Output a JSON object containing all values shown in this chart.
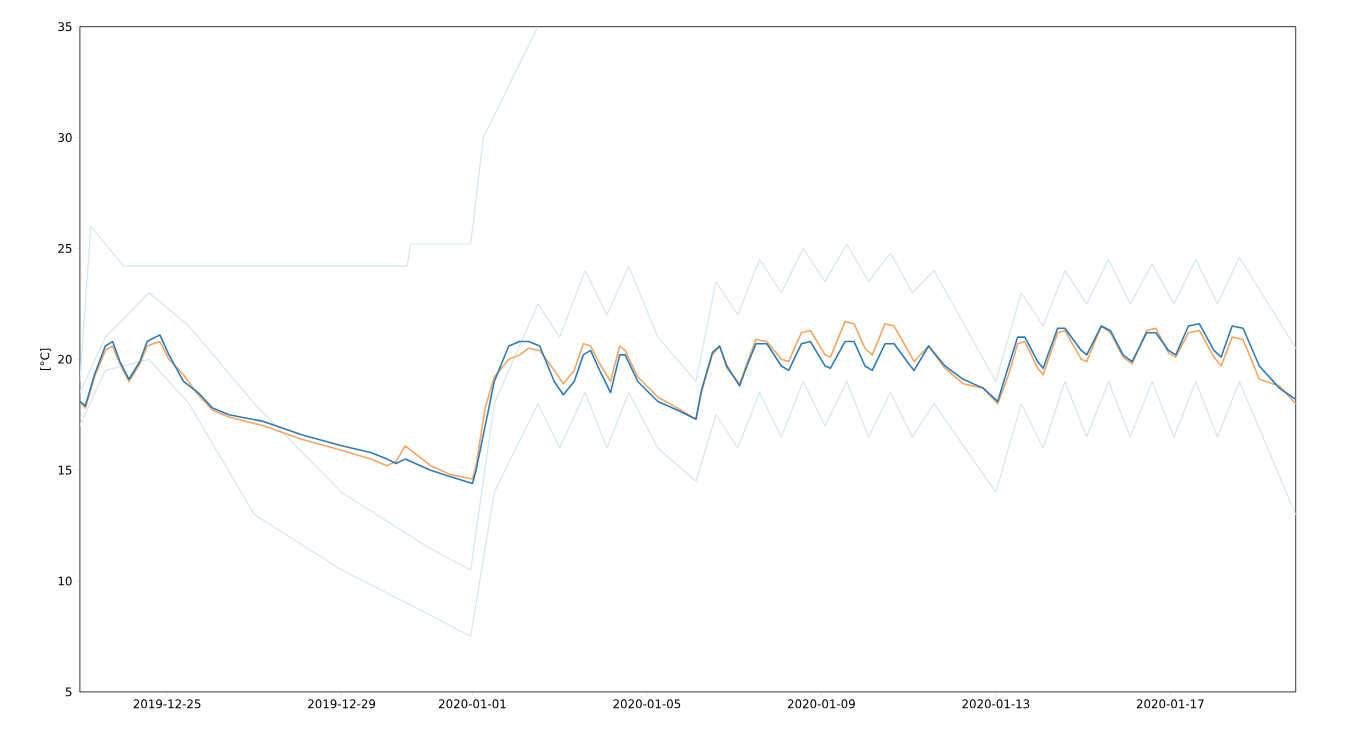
{
  "chart_data": {
    "type": "line",
    "ylabel": "[°C]",
    "xlim": [
      "2019-12-23T00:00",
      "2020-01-19T21:00"
    ],
    "ylim": [
      5,
      35
    ],
    "xticks": [
      "2019-12-25",
      "2019-12-29",
      "2020-01-01",
      "2020-01-05",
      "2020-01-09",
      "2020-01-13",
      "2020-01-17"
    ],
    "yticks": [
      5,
      10,
      15,
      20,
      25,
      30,
      35
    ],
    "marker": "none",
    "line_style": "solid",
    "x": [
      "2019-12-23T00:00",
      "2019-12-23T03:00",
      "2019-12-23T08:00",
      "2019-12-23T14:00",
      "2019-12-23T18:00",
      "2019-12-23T22:00",
      "2019-12-24T03:00",
      "2019-12-24T09:00",
      "2019-12-24T13:00",
      "2019-12-24T20:00",
      "2019-12-25T01:00",
      "2019-12-25T09:00",
      "2019-12-25T17:00",
      "2019-12-26T01:00",
      "2019-12-26T10:00",
      "2019-12-27T05:00",
      "2019-12-28T02:00",
      "2019-12-29T00:00",
      "2019-12-29T16:00",
      "2019-12-30T01:00",
      "2019-12-30T06:00",
      "2019-12-30T11:00",
      "2019-12-31T01:00",
      "2019-12-31T12:00",
      "2020-01-01T00:00",
      "2020-01-01T02:00",
      "2020-01-01T07:00",
      "2020-01-01T12:00",
      "2020-01-01T20:00",
      "2020-01-02T02:00",
      "2020-01-02T07:00",
      "2020-01-02T13:00",
      "2020-01-02T21:00",
      "2020-01-03T02:00",
      "2020-01-03T08:00",
      "2020-01-03T13:00",
      "2020-01-03T17:00",
      "2020-01-03T22:00",
      "2020-01-04T04:00",
      "2020-01-04T09:00",
      "2020-01-04T12:00",
      "2020-01-04T19:00",
      "2020-01-05T06:00",
      "2020-01-05T17:00",
      "2020-01-06T03:00",
      "2020-01-06T06:00",
      "2020-01-06T12:00",
      "2020-01-06T16:00",
      "2020-01-06T20:00",
      "2020-01-07T03:00",
      "2020-01-07T07:00",
      "2020-01-07T12:00",
      "2020-01-07T18:00",
      "2020-01-08T02:00",
      "2020-01-08T06:00",
      "2020-01-08T13:00",
      "2020-01-08T18:00",
      "2020-01-09T02:00",
      "2020-01-09T05:00",
      "2020-01-09T13:00",
      "2020-01-09T18:00",
      "2020-01-10T00:00",
      "2020-01-10T04:00",
      "2020-01-10T11:00",
      "2020-01-10T16:00",
      "2020-01-11T01:00",
      "2020-01-11T03:00",
      "2020-01-11T11:00",
      "2020-01-11T20:00",
      "2020-01-12T06:00",
      "2020-01-12T17:00",
      "2020-01-13T01:00",
      "2020-01-13T07:00",
      "2020-01-13T12:00",
      "2020-01-13T16:00",
      "2020-01-13T23:00",
      "2020-01-14T02:00",
      "2020-01-14T10:00",
      "2020-01-14T14:00",
      "2020-01-14T23:00",
      "2020-01-15T02:00",
      "2020-01-15T10:00",
      "2020-01-15T15:00",
      "2020-01-15T22:00",
      "2020-01-16T03:00",
      "2020-01-16T11:00",
      "2020-01-16T16:00",
      "2020-01-16T23:00",
      "2020-01-17T03:00",
      "2020-01-17T10:00",
      "2020-01-17T16:00",
      "2020-01-18T00:00",
      "2020-01-18T04:00",
      "2020-01-18T10:00",
      "2020-01-18T16:00",
      "2020-01-19T01:00",
      "2020-01-19T12:00",
      "2020-01-19T21:00"
    ],
    "series": [
      {
        "color": "#d6e5f1",
        "x": [
          "2019-12-23T00:00",
          "2019-12-23T14:00",
          "2019-12-24T14:00",
          "2019-12-25T12:00",
          "2019-12-27T00:00",
          "2019-12-29T00:00",
          "2019-12-31T00:00",
          "2019-12-31T23:00",
          "2020-01-01T12:00",
          "2020-01-02T12:00",
          "2020-01-03T00:00",
          "2020-01-03T14:00",
          "2020-01-04T02:00",
          "2020-01-04T14:00",
          "2020-01-05T06:00",
          "2020-01-06T03:00",
          "2020-01-06T14:00",
          "2020-01-07T02:00",
          "2020-01-07T14:00",
          "2020-01-08T02:00",
          "2020-01-08T14:00",
          "2020-01-09T02:00",
          "2020-01-09T14:00",
          "2020-01-10T02:00",
          "2020-01-10T14:00",
          "2020-01-11T02:00",
          "2020-01-11T14:00",
          "2020-01-13T00:00",
          "2020-01-13T14:00",
          "2020-01-14T02:00",
          "2020-01-14T14:00",
          "2020-01-15T02:00",
          "2020-01-15T14:00",
          "2020-01-16T02:00",
          "2020-01-16T14:00",
          "2020-01-17T02:00",
          "2020-01-17T14:00",
          "2020-01-18T02:00",
          "2020-01-18T14:00",
          "2020-01-19T21:00"
        ],
        "values": [
          18.5,
          21,
          23,
          21.5,
          18,
          14,
          11.5,
          10.5,
          18,
          22.5,
          21,
          24,
          22,
          24.2,
          21,
          19,
          23.5,
          22,
          24.5,
          23,
          25,
          23.5,
          25.2,
          23.5,
          24.8,
          23,
          24,
          19,
          23,
          21.5,
          24,
          22.5,
          24.5,
          22.5,
          24.3,
          22.5,
          24.5,
          22.5,
          24.6,
          20.5
        ]
      },
      {
        "color": "#d6e5f1",
        "x": [
          "2019-12-23T00:00",
          "2019-12-23T14:00",
          "2019-12-24T14:00",
          "2019-12-25T12:00",
          "2019-12-27T00:00",
          "2019-12-29T00:00",
          "2019-12-31T00:00",
          "2019-12-31T23:00",
          "2020-01-01T12:00",
          "2020-01-02T12:00",
          "2020-01-03T00:00",
          "2020-01-03T14:00",
          "2020-01-04T02:00",
          "2020-01-04T14:00",
          "2020-01-05T06:00",
          "2020-01-06T03:00",
          "2020-01-06T14:00",
          "2020-01-07T02:00",
          "2020-01-07T14:00",
          "2020-01-08T02:00",
          "2020-01-08T14:00",
          "2020-01-09T02:00",
          "2020-01-09T14:00",
          "2020-01-10T02:00",
          "2020-01-10T14:00",
          "2020-01-11T02:00",
          "2020-01-11T14:00",
          "2020-01-13T00:00",
          "2020-01-13T14:00",
          "2020-01-14T02:00",
          "2020-01-14T14:00",
          "2020-01-15T02:00",
          "2020-01-15T14:00",
          "2020-01-16T02:00",
          "2020-01-16T14:00",
          "2020-01-17T02:00",
          "2020-01-17T14:00",
          "2020-01-18T02:00",
          "2020-01-18T14:00",
          "2020-01-19T21:00"
        ],
        "values": [
          17,
          19.5,
          20,
          18,
          13,
          10.5,
          8.5,
          7.5,
          14,
          18,
          16,
          18.5,
          16,
          18.5,
          16,
          14.5,
          17.5,
          16,
          18.5,
          16.5,
          19,
          17,
          19,
          16.5,
          18.5,
          16.5,
          18,
          14,
          18,
          16,
          19,
          16.5,
          19,
          16.5,
          19,
          16.5,
          19,
          16.5,
          19,
          13
        ]
      },
      {
        "color": "#d6e5f1",
        "x": [
          "2019-12-23T00:00",
          "2019-12-23T06:00",
          "2019-12-24T00:00",
          "2019-12-29T00:00",
          "2019-12-30T12:00",
          "2019-12-30T14:00",
          "2019-12-31T23:00",
          "2020-01-01T06:00",
          "2020-01-02T00:00",
          "2020-01-02T12:00"
        ],
        "values": [
          19,
          26,
          24.2,
          24.2,
          24.2,
          25.2,
          25.2,
          30,
          33,
          35
        ]
      },
      {
        "color": "#f6a45e",
        "values": [
          18.1,
          17.8,
          19.2,
          20.4,
          20.6,
          19.8,
          19.0,
          19.8,
          20.6,
          20.8,
          20.0,
          19.3,
          18.4,
          17.7,
          17.4,
          17.0,
          16.4,
          15.9,
          15.5,
          15.2,
          15.4,
          16.1,
          15.2,
          14.8,
          14.6,
          15.2,
          17.8,
          19.2,
          20.0,
          20.2,
          20.5,
          20.4,
          19.5,
          18.9,
          19.5,
          20.7,
          20.6,
          19.8,
          19.0,
          20.6,
          20.4,
          19.2,
          18.3,
          17.8,
          17.3,
          18.5,
          20.2,
          20.6,
          19.6,
          18.9,
          19.8,
          20.9,
          20.8,
          20.0,
          19.9,
          21.2,
          21.3,
          20.2,
          20.1,
          21.7,
          21.6,
          20.5,
          20.2,
          21.6,
          21.5,
          20.2,
          19.9,
          20.6,
          19.6,
          18.9,
          18.7,
          18.0,
          19.3,
          20.7,
          20.8,
          19.6,
          19.3,
          21.2,
          21.3,
          20.0,
          19.9,
          21.5,
          21.2,
          20.1,
          19.8,
          21.3,
          21.4,
          20.3,
          20.1,
          21.2,
          21.3,
          20.1,
          19.7,
          21.0,
          20.9,
          19.1,
          18.8,
          18.0
        ]
      },
      {
        "color": "#2b7bba",
        "values": [
          18.1,
          17.9,
          19.3,
          20.6,
          20.8,
          19.9,
          19.1,
          19.9,
          20.8,
          21.1,
          20.2,
          19.0,
          18.5,
          17.8,
          17.5,
          17.2,
          16.6,
          16.1,
          15.8,
          15.5,
          15.3,
          15.5,
          15.0,
          14.7,
          14.4,
          15.0,
          17.0,
          19.0,
          20.6,
          20.8,
          20.8,
          20.6,
          19.0,
          18.4,
          19.0,
          20.2,
          20.4,
          19.5,
          18.5,
          20.2,
          20.2,
          19.0,
          18.1,
          17.7,
          17.3,
          18.6,
          20.3,
          20.6,
          19.7,
          18.8,
          19.7,
          20.7,
          20.7,
          19.7,
          19.5,
          20.7,
          20.8,
          19.7,
          19.6,
          20.8,
          20.8,
          19.7,
          19.5,
          20.7,
          20.7,
          19.7,
          19.5,
          20.6,
          19.7,
          19.1,
          18.7,
          18.1,
          19.7,
          21.0,
          21.0,
          19.9,
          19.6,
          21.4,
          21.4,
          20.4,
          20.2,
          21.5,
          21.3,
          20.2,
          19.9,
          21.2,
          21.2,
          20.4,
          20.2,
          21.5,
          21.6,
          20.4,
          20.1,
          21.5,
          21.4,
          19.7,
          18.7,
          18.2
        ]
      }
    ]
  }
}
